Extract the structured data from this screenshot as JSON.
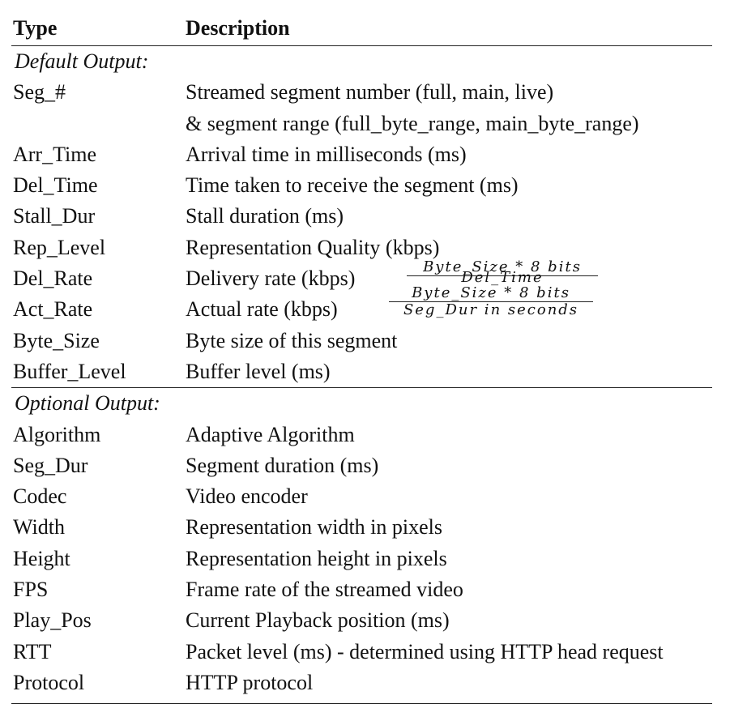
{
  "header": {
    "type_label": "Type",
    "desc_label": "Description"
  },
  "default_section": {
    "label": "Default Output:",
    "rows": [
      {
        "type": "Seg_#",
        "desc": "Streamed segment number (full, main, live)"
      },
      {
        "type": "",
        "desc": "& segment range (full_byte_range, main_byte_range)"
      },
      {
        "type": "Arr_Time",
        "desc": "Arrival time in milliseconds (ms)"
      },
      {
        "type": "Del_Time",
        "desc": "Time taken to receive the segment (ms)"
      },
      {
        "type": "Stall_Dur",
        "desc": "Stall duration (ms)"
      },
      {
        "type": "Rep_Level",
        "desc": "Representation Quality (kbps)"
      },
      {
        "type": "Del_Rate",
        "desc": "Delivery rate (kbps)",
        "formula_num": "Byte_Size * 8 bits",
        "formula_den": "Del_Time"
      },
      {
        "type": "Act_Rate",
        "desc": "Actual rate (kbps)",
        "formula_num": "Byte_Size * 8 bits",
        "formula_den": "Seg_Dur in seconds"
      },
      {
        "type": "Byte_Size",
        "desc": "Byte size of this segment"
      },
      {
        "type": "Buffer_Level",
        "desc": "Buffer level (ms)"
      }
    ]
  },
  "optional_section": {
    "label": "Optional Output:",
    "rows": [
      {
        "type": "Algorithm",
        "desc": "Adaptive Algorithm"
      },
      {
        "type": "Seg_Dur",
        "desc": "Segment duration (ms)"
      },
      {
        "type": "Codec",
        "desc": "Video encoder"
      },
      {
        "type": "Width",
        "desc": "Representation width in pixels"
      },
      {
        "type": "Height",
        "desc": "Representation height in pixels"
      },
      {
        "type": "FPS",
        "desc": "Frame rate of the streamed video"
      },
      {
        "type": "Play_Pos",
        "desc": "Current Playback position (ms)"
      },
      {
        "type": "RTT",
        "desc": "Packet level (ms) - determined using HTTP head request"
      },
      {
        "type": "Protocol",
        "desc": "HTTP protocol"
      }
    ]
  }
}
